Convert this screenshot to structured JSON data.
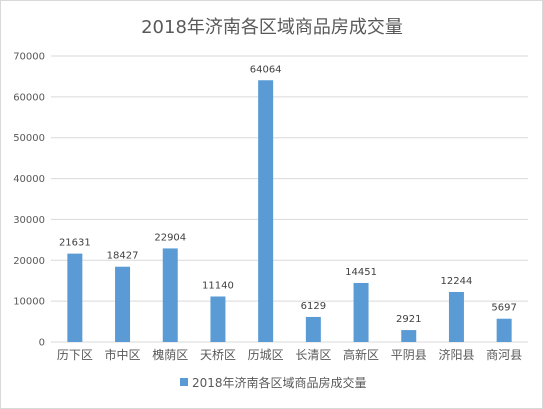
{
  "chart_data": {
    "type": "bar",
    "title": "2018年济南各区域商品房成交量",
    "categories": [
      "历下区",
      "市中区",
      "槐荫区",
      "天桥区",
      "历城区",
      "长清区",
      "高新区",
      "平阴县",
      "济阳县",
      "商河县"
    ],
    "series": [
      {
        "name": "2018年济南各区域商品房成交量",
        "values": [
          21631,
          18427,
          22904,
          11140,
          64064,
          6129,
          14451,
          2921,
          12244,
          5697
        ],
        "color": "#5b9bd5"
      }
    ],
    "ylim": [
      0,
      70000
    ],
    "yticks": [
      0,
      10000,
      20000,
      30000,
      40000,
      50000,
      60000,
      70000
    ],
    "grid": true,
    "legend_position": "bottom",
    "data_labels": true,
    "gridline_color": "#d9d9d9",
    "text_color": "#595959"
  }
}
